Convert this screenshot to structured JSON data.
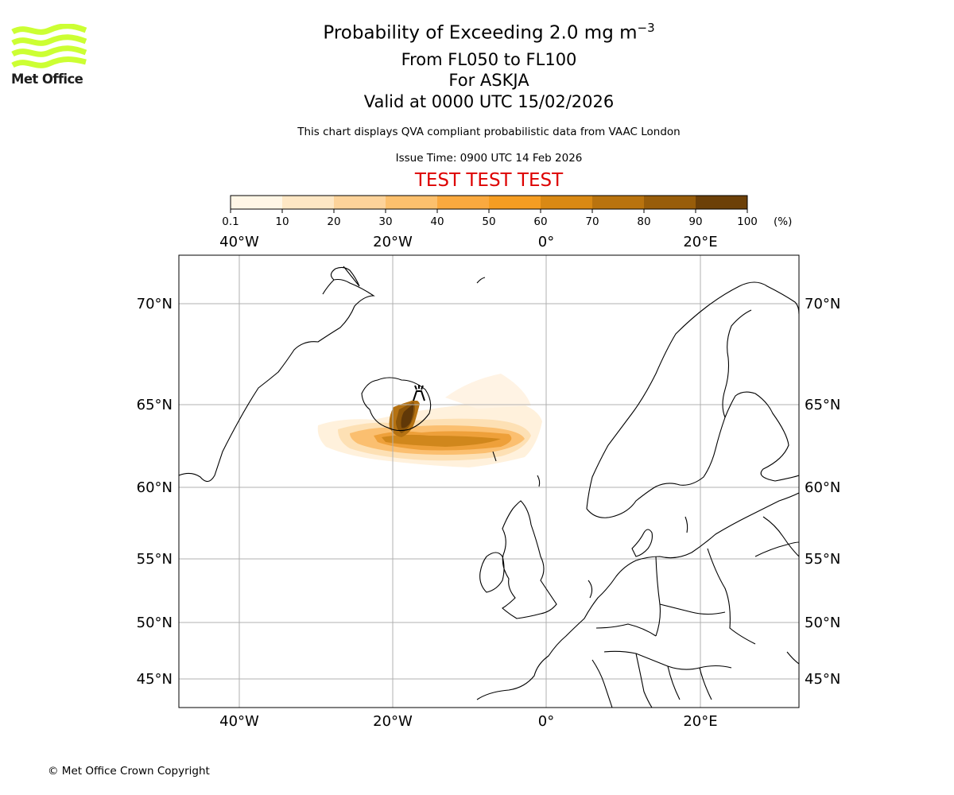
{
  "logo": {
    "text": "Met Office",
    "icon": "met-office-wave-logo",
    "color": "#ccff33"
  },
  "header": {
    "title": "Probability of Exceeding 2.0 mg m",
    "title_sup": "−3",
    "levels": "From FL050 to FL100",
    "volcano": "For ASKJA",
    "valid": "Valid at 0000 UTC 15/02/2026",
    "disclaimer": "This chart displays QVA compliant probabilistic data from VAAC London",
    "issue_time": "Issue Time: 0900 UTC 14 Feb 2026",
    "test_banner": "TEST TEST TEST"
  },
  "colorbar": {
    "ticks": [
      "0.1",
      "10",
      "20",
      "30",
      "40",
      "50",
      "60",
      "70",
      "80",
      "90",
      "100"
    ],
    "unit": "(%)",
    "colors": [
      "#fff6e6",
      "#fee7c4",
      "#fdd39a",
      "#fcc06d",
      "#faa93f",
      "#f59d22",
      "#d98914",
      "#b9730e",
      "#985d0a",
      "#6c4008"
    ]
  },
  "map": {
    "lon_labels": [
      "40°W",
      "20°W",
      "0°",
      "20°E"
    ],
    "lat_labels": [
      "70°N",
      "65°N",
      "60°N",
      "55°N",
      "50°N",
      "45°N"
    ],
    "volcano_icon": "volcano-marker-icon"
  },
  "footer": {
    "copyright": "© Met Office Crown Copyright"
  }
}
